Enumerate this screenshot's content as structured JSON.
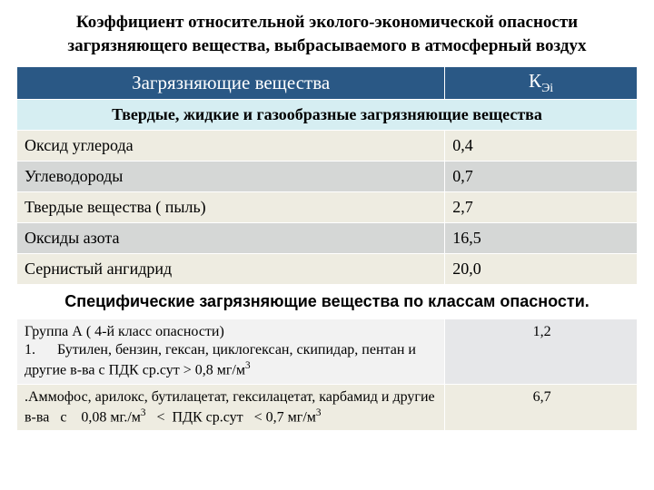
{
  "title": "Коэффициент относительной эколого-экономической опасности загрязняющего вещества, выбрасываемого в атмосферный воздух",
  "header": {
    "col1": "Загрязняющие вещества",
    "col2_base": "К",
    "col2_sub": "Эi"
  },
  "category1": "Твердые, жидкие и газообразные загрязняющие вещества",
  "rows": [
    {
      "name": "Оксид углерода",
      "value": "0,4",
      "bg": "bg-beige"
    },
    {
      "name": "Углеводороды",
      "value": "0,7",
      "bg": "bg-gray"
    },
    {
      "name": "Твердые вещества  ( пыль)",
      "value": "2,7",
      "bg": "bg-beige"
    },
    {
      "name": "Оксиды азота",
      "value": "16,5",
      "bg": "bg-gray"
    },
    {
      "name": "Сернистый ангидрид",
      "value": "20,0",
      "bg": "bg-beige"
    }
  ],
  "category2": "Специфические загрязняющие вещества по классам опасности.",
  "spec_rows": [
    {
      "name_html": "Группа А ( 4-й класс опасности)<br>1.&nbsp;&nbsp;&nbsp;&nbsp;&nbsp;&nbsp;Бутилен, бензин, гексан, циклогексан, скипидар, пентан и другие в-ва с ПДК ср.сут &gt; 0,8 мг/м<sup>3</sup>",
      "value": "1,2",
      "cls": "spec-a"
    },
    {
      "name_html": ".Аммофос, арилокс, бутилацетат, гексилацетат, карбамид и другие в-ва&nbsp;&nbsp;&nbsp;с&nbsp;&nbsp;&nbsp;&nbsp;0,08 мг./м<sup>3</sup>&nbsp;&nbsp;&nbsp;&lt;&nbsp;&nbsp;ПДК ср.сут&nbsp;&nbsp;&nbsp;&lt; 0,7 мг/м<sup>3</sup>",
      "value": "6,7",
      "cls": "spec-b"
    }
  ],
  "colors": {
    "header_bg": "#2a5885",
    "header_text": "#ffffff",
    "cat1_bg": "#d6eef2",
    "row_beige": "#eeece1",
    "row_gray": "#d5d7d6",
    "cat2_bg": "#ffffff",
    "spec_a_bg": "#f2f2f2",
    "spec_a_val_bg": "#e6e7e9",
    "spec_b_bg": "#eeece1",
    "border": "#ffffff"
  }
}
